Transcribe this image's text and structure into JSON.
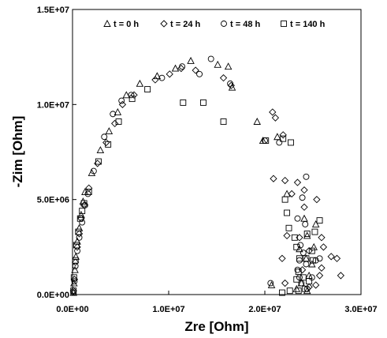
{
  "chart_data": {
    "type": "scatter",
    "xlabel": "Zre [Ohm]",
    "ylabel": "-Zim [Ohm]",
    "xlim": [
      0,
      30000000
    ],
    "ylim": [
      0,
      15000000
    ],
    "x_ticks": [
      0,
      10000000,
      20000000,
      30000000
    ],
    "x_tick_labels": [
      "0.0E+00",
      "1.0E+07",
      "2.0E+07",
      "3.0E+07"
    ],
    "y_ticks": [
      0,
      5000000,
      10000000,
      15000000
    ],
    "y_tick_labels": [
      "0.0E+00",
      "5.0E+06",
      "1.0E+07",
      "1.5E+07"
    ],
    "grid": false,
    "legend_position": "top",
    "series": [
      {
        "name": "t = 0 h",
        "marker": "triangle",
        "points": [
          [
            100000,
            100000
          ],
          [
            150000,
            600000
          ],
          [
            250000,
            1300000
          ],
          [
            350000,
            2000000
          ],
          [
            500000,
            2800000
          ],
          [
            700000,
            3500000
          ],
          [
            900000,
            4200000
          ],
          [
            1100000,
            4900000
          ],
          [
            1300000,
            5400000
          ],
          [
            2000000,
            6400000
          ],
          [
            2900000,
            7600000
          ],
          [
            3800000,
            8600000
          ],
          [
            4700000,
            9600000
          ],
          [
            5600000,
            10500000
          ],
          [
            7000000,
            11100000
          ],
          [
            8800000,
            11500000
          ],
          [
            10700000,
            11900000
          ],
          [
            12300000,
            12300000
          ],
          [
            15100000,
            12100000
          ],
          [
            16200000,
            12000000
          ],
          [
            16600000,
            10900000
          ],
          [
            19200000,
            9100000
          ],
          [
            19800000,
            8100000
          ],
          [
            21300000,
            8300000
          ],
          [
            22300000,
            5300000
          ],
          [
            24100000,
            4000000
          ],
          [
            24400000,
            3100000
          ],
          [
            25100000,
            2500000
          ],
          [
            25300000,
            3700000
          ],
          [
            23600000,
            2400000
          ],
          [
            24300000,
            1900000
          ],
          [
            24900000,
            1600000
          ],
          [
            24600000,
            1000000
          ],
          [
            23800000,
            600000
          ],
          [
            23300000,
            300000
          ],
          [
            24400000,
            200000
          ],
          [
            20700000,
            500000
          ]
        ]
      },
      {
        "name": "t = 24 h",
        "marker": "diamond",
        "points": [
          [
            100000,
            200000
          ],
          [
            200000,
            800000
          ],
          [
            300000,
            1700000
          ],
          [
            500000,
            2500000
          ],
          [
            700000,
            3200000
          ],
          [
            900000,
            4000000
          ],
          [
            1200000,
            4700000
          ],
          [
            1700000,
            5600000
          ],
          [
            2600000,
            6900000
          ],
          [
            3500000,
            8000000
          ],
          [
            4400000,
            9000000
          ],
          [
            5200000,
            10000000
          ],
          [
            6400000,
            10500000
          ],
          [
            8600000,
            11300000
          ],
          [
            10100000,
            11600000
          ],
          [
            11300000,
            11900000
          ],
          [
            12800000,
            11800000
          ],
          [
            15700000,
            11400000
          ],
          [
            16500000,
            11000000
          ],
          [
            20800000,
            9600000
          ],
          [
            21100000,
            9300000
          ],
          [
            20900000,
            6100000
          ],
          [
            21900000,
            8400000
          ],
          [
            22100000,
            6000000
          ],
          [
            23400000,
            5900000
          ],
          [
            24100000,
            5500000
          ],
          [
            22800000,
            5300000
          ],
          [
            25400000,
            5000000
          ],
          [
            24100000,
            4600000
          ],
          [
            23600000,
            3000000
          ],
          [
            25900000,
            3000000
          ],
          [
            22300000,
            3100000
          ],
          [
            24600000,
            2300000
          ],
          [
            26100000,
            2500000
          ],
          [
            26900000,
            2000000
          ],
          [
            27500000,
            1900000
          ],
          [
            21800000,
            1900000
          ],
          [
            25900000,
            1400000
          ],
          [
            23900000,
            1300000
          ],
          [
            25700000,
            1000000
          ],
          [
            27900000,
            1000000
          ],
          [
            22100000,
            600000
          ],
          [
            25300000,
            500000
          ],
          [
            24600000,
            400000
          ]
        ]
      },
      {
        "name": "t = 48 h",
        "marker": "circle",
        "points": [
          [
            100000,
            100000
          ],
          [
            200000,
            700000
          ],
          [
            300000,
            1500000
          ],
          [
            500000,
            2300000
          ],
          [
            700000,
            3000000
          ],
          [
            1000000,
            3800000
          ],
          [
            1300000,
            4700000
          ],
          [
            1600000,
            5300000
          ],
          [
            2200000,
            6500000
          ],
          [
            3300000,
            8300000
          ],
          [
            4200000,
            9500000
          ],
          [
            5100000,
            10200000
          ],
          [
            6100000,
            10500000
          ],
          [
            9300000,
            11400000
          ],
          [
            11400000,
            12000000
          ],
          [
            13200000,
            11600000
          ],
          [
            14400000,
            12400000
          ],
          [
            16400000,
            11100000
          ],
          [
            20000000,
            8100000
          ],
          [
            21500000,
            8000000
          ],
          [
            24300000,
            6200000
          ],
          [
            23900000,
            5100000
          ],
          [
            23400000,
            4000000
          ],
          [
            24200000,
            3700000
          ],
          [
            23700000,
            2600000
          ],
          [
            24000000,
            2200000
          ],
          [
            23600000,
            1800000
          ],
          [
            24300000,
            1600000
          ],
          [
            23400000,
            1300000
          ],
          [
            25300000,
            1800000
          ],
          [
            25700000,
            1900000
          ],
          [
            23600000,
            900000
          ],
          [
            24900000,
            900000
          ],
          [
            23800000,
            600000
          ],
          [
            24400000,
            300000
          ],
          [
            20600000,
            600000
          ]
        ]
      },
      {
        "name": "t = 140 h",
        "marker": "square",
        "points": [
          [
            100000,
            200000
          ],
          [
            150000,
            900000
          ],
          [
            300000,
            1800000
          ],
          [
            400000,
            2600000
          ],
          [
            600000,
            3300000
          ],
          [
            800000,
            4000000
          ],
          [
            1000000,
            4400000
          ],
          [
            1200000,
            4800000
          ],
          [
            1700000,
            5400000
          ],
          [
            2700000,
            7000000
          ],
          [
            3700000,
            7900000
          ],
          [
            4800000,
            9100000
          ],
          [
            6200000,
            10300000
          ],
          [
            7800000,
            10800000
          ],
          [
            11500000,
            10100000
          ],
          [
            13600000,
            10100000
          ],
          [
            15700000,
            9100000
          ],
          [
            20100000,
            8100000
          ],
          [
            21900000,
            8200000
          ],
          [
            22700000,
            8000000
          ],
          [
            22100000,
            5000000
          ],
          [
            22300000,
            4300000
          ],
          [
            22500000,
            3500000
          ],
          [
            23100000,
            3000000
          ],
          [
            24400000,
            3200000
          ],
          [
            25200000,
            3300000
          ],
          [
            25700000,
            3900000
          ],
          [
            23300000,
            2500000
          ],
          [
            24900000,
            2300000
          ],
          [
            24300000,
            1900000
          ],
          [
            23600000,
            1900000
          ],
          [
            25000000,
            1800000
          ],
          [
            23500000,
            1200000
          ],
          [
            24000000,
            900000
          ],
          [
            23300000,
            800000
          ],
          [
            24600000,
            700000
          ],
          [
            21800000,
            100000
          ],
          [
            22600000,
            200000
          ],
          [
            23500000,
            200000
          ],
          [
            24200000,
            300000
          ]
        ]
      }
    ]
  }
}
